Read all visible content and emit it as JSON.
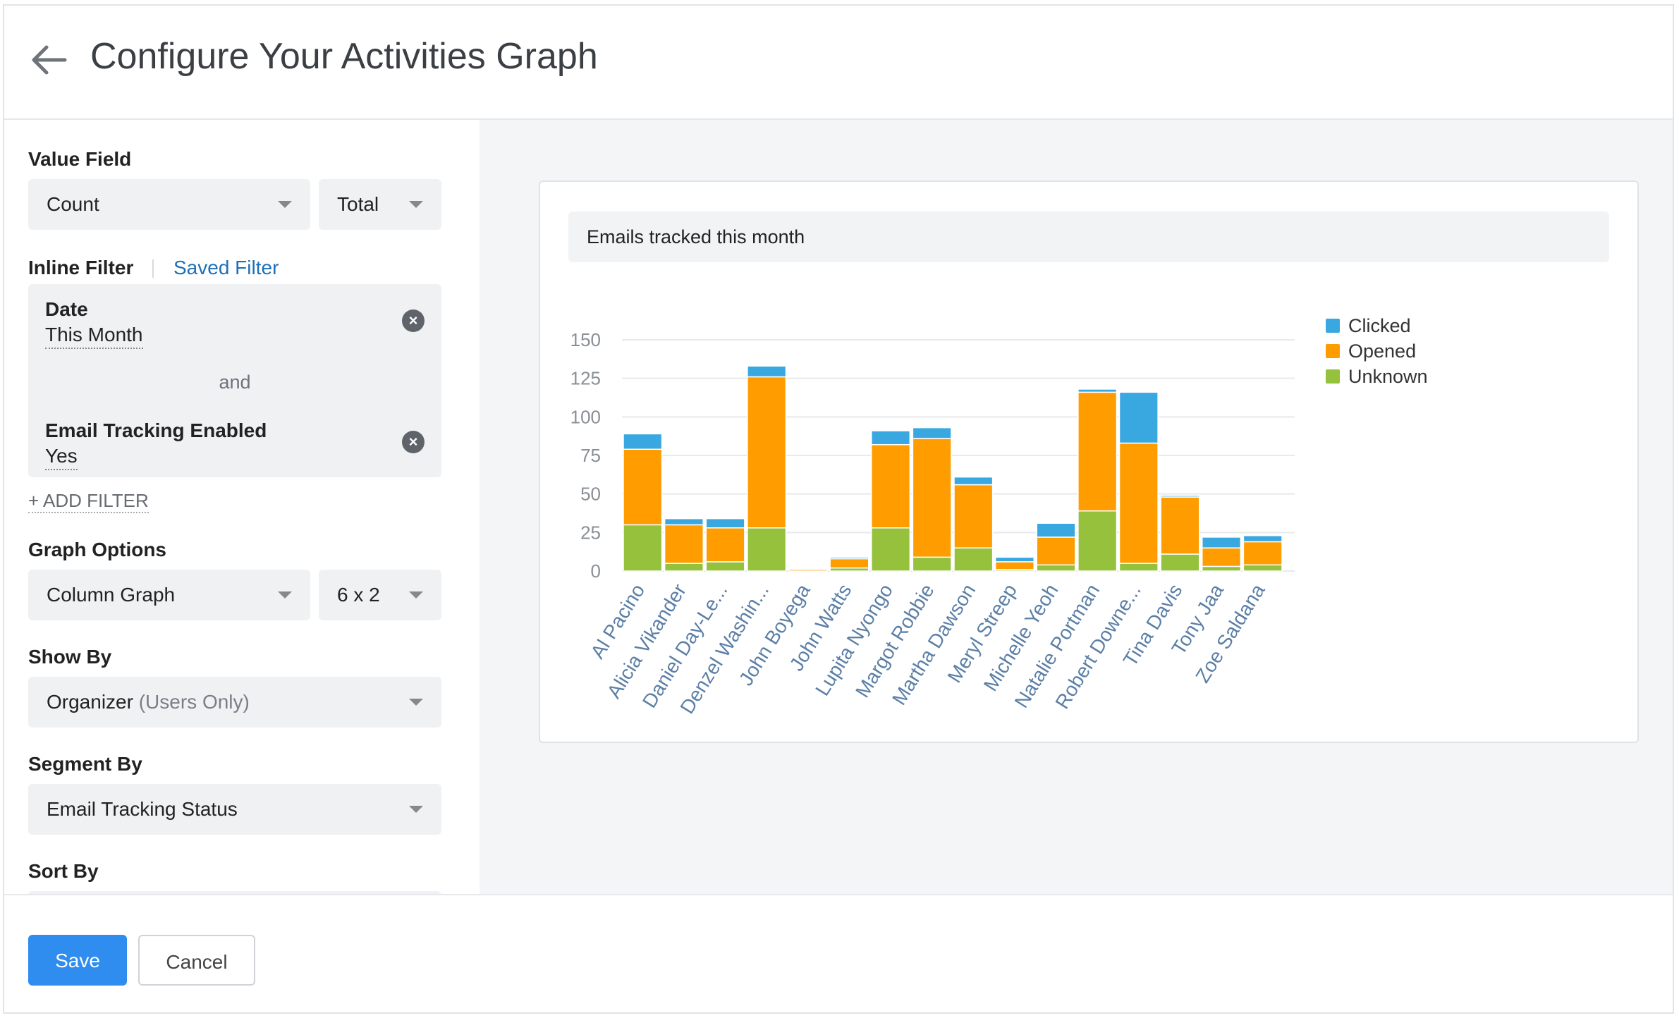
{
  "header": {
    "title": "Configure Your Activities Graph"
  },
  "sidebar": {
    "value_field": {
      "label": "Value Field",
      "field": "Count",
      "aggregate": "Total"
    },
    "filters": {
      "inline_label": "Inline Filter",
      "saved_label": "Saved Filter",
      "items": [
        {
          "name": "Date",
          "value": "This Month"
        },
        {
          "name": "Email Tracking Enabled",
          "value": "Yes"
        }
      ],
      "joiner": "and",
      "add_label": "+ ADD FILTER"
    },
    "graph_options": {
      "label": "Graph Options",
      "type": "Column Graph",
      "size": "6 x 2"
    },
    "show_by": {
      "label": "Show By",
      "value": "Organizer",
      "qualifier": "(Users Only)"
    },
    "segment_by": {
      "label": "Segment By",
      "value": "Email Tracking Status"
    },
    "sort_by": {
      "label": "Sort By"
    }
  },
  "footer": {
    "save_label": "Save",
    "cancel_label": "Cancel"
  },
  "colors": {
    "clicked": "#3aa8e0",
    "opened": "#ff9d00",
    "unknown": "#95c13d",
    "primary": "#2e8def"
  },
  "chart_data": {
    "type": "bar",
    "stacked": true,
    "title": "Emails tracked this month",
    "categories": [
      "Al Pacino",
      "Alicia Vikander",
      "Daniel Day-Le...",
      "Denzel Washin...",
      "John Boyega",
      "John Watts",
      "Lupita Nyongo",
      "Margot Robbie",
      "Martha Dawson",
      "Meryl Streep",
      "Michelle Yeoh",
      "Natalie Portman",
      "Robert Downe...",
      "Tina Davis",
      "Tony Jaa",
      "Zoe Saldana"
    ],
    "series": [
      {
        "name": "Unknown",
        "values": [
          30,
          5,
          6,
          28,
          0,
          2,
          28,
          9,
          15,
          1,
          4,
          39,
          5,
          11,
          3,
          4
        ]
      },
      {
        "name": "Opened",
        "values": [
          49,
          25,
          22,
          98,
          1,
          6,
          54,
          77,
          41,
          5,
          18,
          77,
          78,
          37,
          12,
          15
        ]
      },
      {
        "name": "Clicked",
        "values": [
          10,
          4,
          6,
          7,
          0,
          1,
          9,
          7,
          5,
          3,
          9,
          2,
          33,
          1,
          7,
          4
        ]
      }
    ],
    "ylim": [
      0,
      150
    ],
    "yticks": [
      0,
      25,
      50,
      75,
      100,
      125,
      150
    ],
    "grid": true,
    "legend": "top-right"
  }
}
